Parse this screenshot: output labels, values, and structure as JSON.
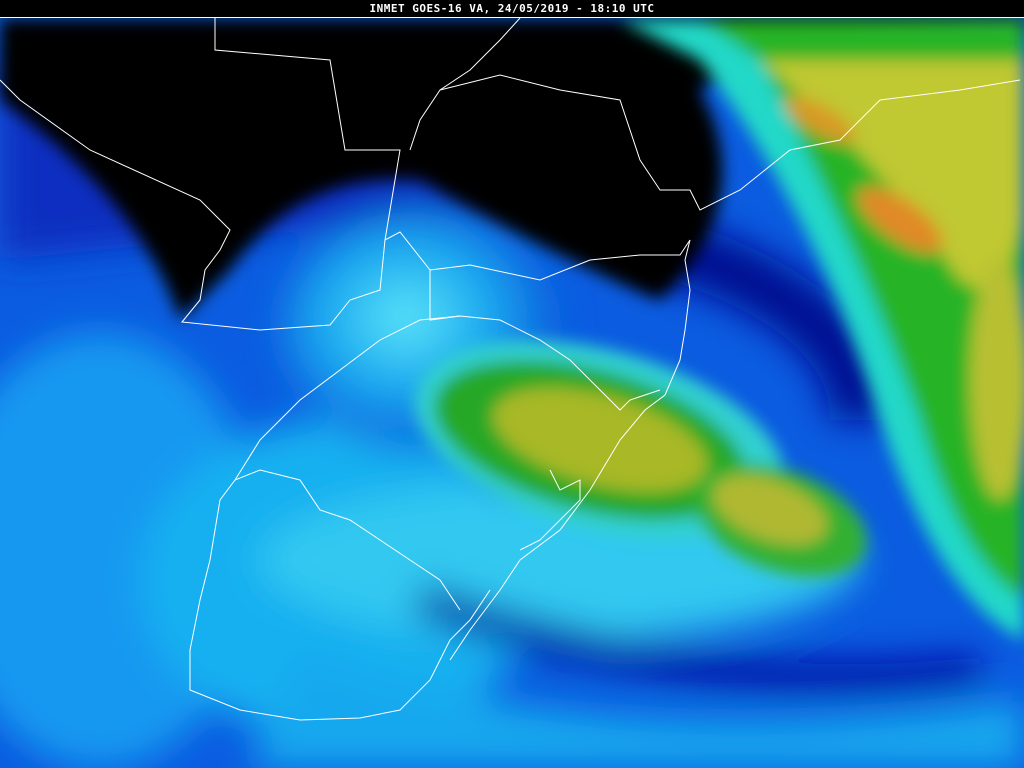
{
  "title": "INMET GOES-16 VA, 24/05/2019 - 18:10 UTC",
  "colors": {
    "dry": "#000000",
    "deep_blue": "#0010a0",
    "blue": "#0a4fd8",
    "light_blue": "#12b8f0",
    "cyan": "#20e8e0",
    "green": "#20b020",
    "yellow": "#c8c828",
    "orange": "#e08020"
  }
}
